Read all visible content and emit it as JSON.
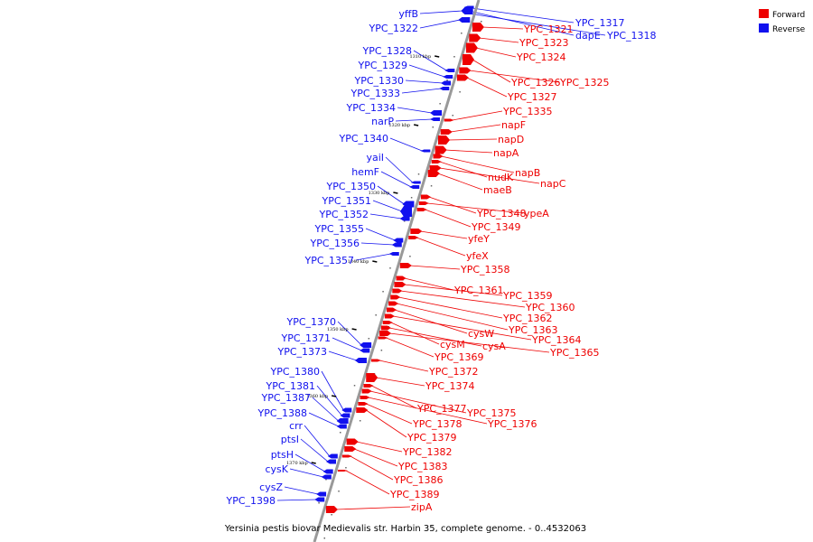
{
  "caption": "Yersinia pestis biovar Medievalis str. Harbin 35, complete genome. - 0..4532063",
  "legend": [
    {
      "label": "Forward",
      "color": "#ee0000"
    },
    {
      "label": "Reverse",
      "color": "#1111ee"
    }
  ],
  "colors": {
    "forward": "#ee0000",
    "reverse": "#1111ee",
    "axis": "#999999"
  },
  "ticks": [
    "1310 kbp",
    "1320 kbp",
    "1330 kbp",
    "1340 kbp",
    "1350 kbp",
    "1360 kbp",
    "1370 kbp"
  ],
  "forward_genes": [
    "YPC_1321",
    "YPC_1323",
    "YPC_1324",
    "YPC_1326",
    "YPC_1325",
    "YPC_1327",
    "YPC_1335",
    "napF",
    "napD",
    "napA",
    "napB",
    "nudK",
    "napC",
    "maeB",
    "YPC_1348",
    "ypeA",
    "YPC_1349",
    "yfeY",
    "yfeX",
    "YPC_1358",
    "YPC_1361",
    "YPC_1359",
    "YPC_1360",
    "YPC_1362",
    "YPC_1363",
    "cysW",
    "YPC_1364",
    "cysM",
    "cysA",
    "YPC_1365",
    "YPC_1369",
    "YPC_1372",
    "YPC_1374",
    "YPC_1377",
    "YPC_1375",
    "YPC_1376",
    "YPC_1378",
    "YPC_1379",
    "YPC_1382",
    "YPC_1383",
    "YPC_1386",
    "YPC_1389",
    "zipA"
  ],
  "reverse_genes": [
    "yffB",
    "YPC_1322",
    "YPC_1317",
    "dapE",
    "YPC_1318",
    "YPC_1328",
    "YPC_1329",
    "YPC_1330",
    "YPC_1333",
    "YPC_1334",
    "narP",
    "YPC_1340",
    "yaiI",
    "hemF",
    "YPC_1350",
    "YPC_1351",
    "YPC_1352",
    "YPC_1355",
    "YPC_1356",
    "YPC_1357",
    "YPC_1370",
    "YPC_1371",
    "YPC_1373",
    "YPC_1380",
    "YPC_1381",
    "YPC_1387",
    "YPC_1388",
    "crr",
    "ptsI",
    "ptsH",
    "cysK",
    "cysZ",
    "YPC_1398"
  ]
}
